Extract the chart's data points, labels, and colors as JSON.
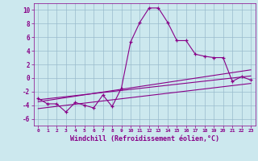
{
  "xlabel": "Windchill (Refroidissement éolien,°C)",
  "bg_color": "#cce8ee",
  "line_color": "#880088",
  "grid_color": "#99bbcc",
  "xlim": [
    -0.5,
    23.5
  ],
  "ylim": [
    -7,
    11
  ],
  "xticks": [
    0,
    1,
    2,
    3,
    4,
    5,
    6,
    7,
    8,
    9,
    10,
    11,
    12,
    13,
    14,
    15,
    16,
    17,
    18,
    19,
    20,
    21,
    22,
    23
  ],
  "yticks": [
    -6,
    -4,
    -2,
    0,
    2,
    4,
    6,
    8,
    10
  ],
  "line1_x": [
    0,
    1,
    2,
    3,
    4,
    5,
    6,
    7,
    8,
    9,
    10,
    11,
    12,
    13,
    14,
    15,
    16,
    17,
    18,
    19,
    20,
    21,
    22,
    23
  ],
  "line1_y": [
    -3.0,
    -3.8,
    -3.8,
    -5.0,
    -3.6,
    -4.0,
    -4.4,
    -2.5,
    -4.2,
    -1.5,
    5.3,
    8.2,
    10.3,
    10.3,
    8.2,
    5.5,
    5.5,
    3.5,
    3.2,
    3.0,
    3.0,
    -0.5,
    0.2,
    -0.3
  ],
  "line2_x": [
    0,
    23
  ],
  "line2_y": [
    -3.2,
    0.3
  ],
  "line3_x": [
    0,
    23
  ],
  "line3_y": [
    -3.5,
    1.2
  ],
  "line4_x": [
    0,
    23
  ],
  "line4_y": [
    -4.5,
    -0.8
  ]
}
